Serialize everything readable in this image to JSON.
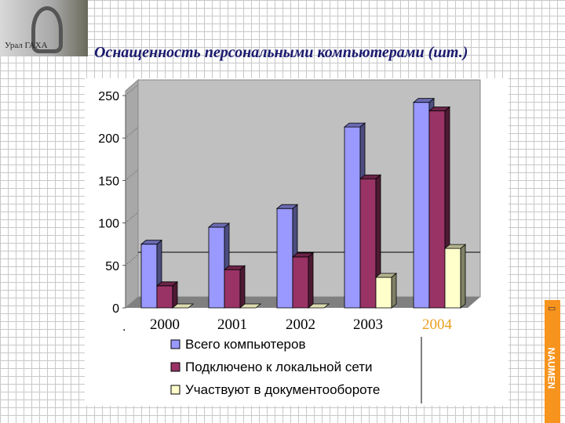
{
  "logo": {
    "text": "Урал ГАХА"
  },
  "title": "Оснащенность персональными компьютерами (шт.)",
  "brand": {
    "text": "NAUMEN",
    "color": "#f7941d",
    "icon": "laptop-icon"
  },
  "chart_data": {
    "type": "bar",
    "style": "3d-clustered",
    "categories": [
      "2000",
      "2001",
      "2002",
      "2003",
      "2004"
    ],
    "highlight_category": "2004",
    "highlight_color": "#e8a020",
    "series": [
      {
        "name": "Всего компьютеров",
        "values": [
          75,
          95,
          117,
          213,
          242
        ],
        "color": "#9999ff"
      },
      {
        "name": "Подключено к локальной сети",
        "values": [
          26,
          45,
          60,
          152,
          232
        ],
        "color": "#993366"
      },
      {
        "name": "Участвуют в документообороте",
        "values": [
          0,
          0,
          0,
          36,
          70
        ],
        "color": "#ffffcc"
      }
    ],
    "reference_line": 59,
    "yticks": [
      "0",
      "50",
      "100",
      "150",
      "200",
      "250"
    ],
    "ylim": [
      0,
      250
    ],
    "legend": "bottom",
    "wall_color": "#c0c0c0",
    "floor_color": "#808080"
  }
}
